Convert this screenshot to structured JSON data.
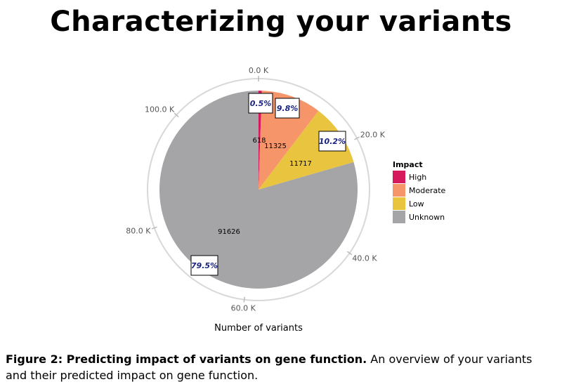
{
  "page": {
    "title": "Characterizing your variants"
  },
  "figure": {
    "caption_label": "Figure 2: Predicting impact of variants on gene function.",
    "caption_text": "An overview of your variants and their predicted impact on gene function."
  },
  "colors": {
    "High": "#D6185D",
    "Moderate": "#F7956A",
    "Low": "#E9C43F",
    "Unknown": "#A5A5A7",
    "ring": "#D8D8D8",
    "percent_label": "#1A2480"
  },
  "chart_data": {
    "type": "pie",
    "title": "",
    "xlabel": "Number of variants",
    "legend_title": "Impact",
    "legend_position": "right",
    "categories": [
      "High",
      "Moderate",
      "Low",
      "Unknown"
    ],
    "values": [
      618,
      11325,
      11717,
      91626
    ],
    "percent_labels": [
      "0.5%",
      "9.8%",
      "10.2%",
      "79.5%"
    ],
    "count_labels": [
      "618",
      "11325",
      "11717",
      "91626"
    ],
    "axis_max": 115286,
    "ticks": [
      {
        "value": 0,
        "label": "0.0 K"
      },
      {
        "value": 20000,
        "label": "20.0 K"
      },
      {
        "value": 40000,
        "label": "40.0 K"
      },
      {
        "value": 60000,
        "label": "60.0 K"
      },
      {
        "value": 80000,
        "label": "80.0 K"
      },
      {
        "value": 100000,
        "label": "100.0 K"
      }
    ]
  }
}
